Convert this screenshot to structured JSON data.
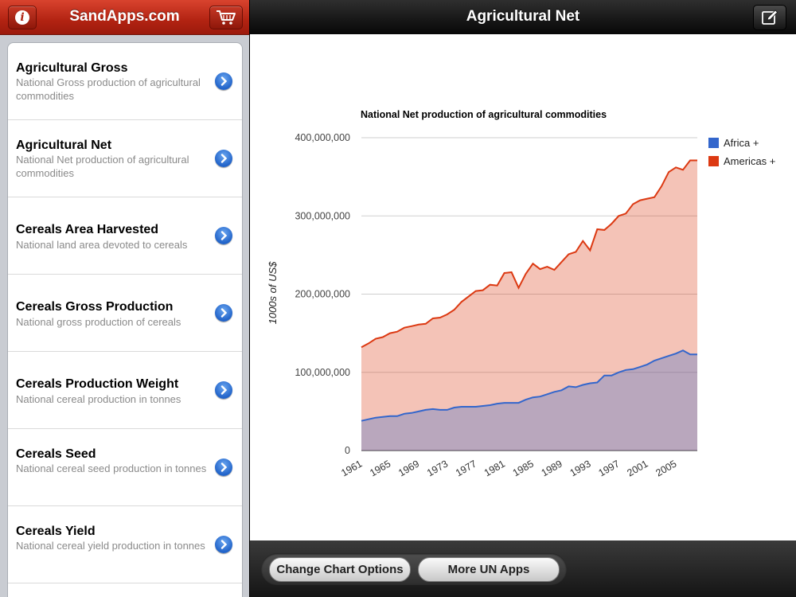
{
  "left_panel": {
    "title": "SandApps.com",
    "info_icon": "info-icon",
    "cart_icon": "cart-icon",
    "items": [
      {
        "title": "Agricultural Gross",
        "subtitle": "National Gross production of agricultural commodities"
      },
      {
        "title": "Agricultural Net",
        "subtitle": "National Net production of agricultural commodities"
      },
      {
        "title": "Cereals Area Harvested",
        "subtitle": "National land area devoted to cereals"
      },
      {
        "title": "Cereals Gross Production",
        "subtitle": "National gross production of cereals"
      },
      {
        "title": "Cereals Production Weight",
        "subtitle": "National cereal production in tonnes"
      },
      {
        "title": "Cereals Seed",
        "subtitle": "National cereal seed production in tonnes"
      },
      {
        "title": "Cereals Yield",
        "subtitle": "National cereal yield production in tonnes"
      }
    ]
  },
  "right_panel": {
    "title": "Agricultural Net",
    "edit_icon": "compose-icon"
  },
  "toolbar": {
    "change_chart_options": "Change Chart Options",
    "more_un_apps": "More UN Apps"
  },
  "colors": {
    "africa": "#3366cc",
    "americas": "#dc3912",
    "header_red": "#b22312"
  },
  "chart_data": {
    "type": "area",
    "title": "National Net production of agricultural commodities",
    "xlabel": "",
    "ylabel": "1000s of US$",
    "ylim": [
      0,
      400000000
    ],
    "yticks": [
      0,
      100000000,
      200000000,
      300000000,
      400000000
    ],
    "ytick_labels": [
      "0",
      "100,000,000",
      "200,000,000",
      "300,000,000",
      "400,000,000"
    ],
    "xtick_labels": [
      "1961",
      "1965",
      "1969",
      "1973",
      "1977",
      "1981",
      "1985",
      "1989",
      "1993",
      "1997",
      "2001",
      "2005"
    ],
    "x": [
      1961,
      1962,
      1963,
      1964,
      1965,
      1966,
      1967,
      1968,
      1969,
      1970,
      1971,
      1972,
      1973,
      1974,
      1975,
      1976,
      1977,
      1978,
      1979,
      1980,
      1981,
      1982,
      1983,
      1984,
      1985,
      1986,
      1987,
      1988,
      1989,
      1990,
      1991,
      1992,
      1993,
      1994,
      1995,
      1996,
      1997,
      1998,
      1999,
      2000,
      2001,
      2002,
      2003,
      2004,
      2005,
      2006,
      2007,
      2008
    ],
    "legend_position": "right",
    "grid": true,
    "series": [
      {
        "name": "Africa +",
        "color": "#3366cc",
        "values": [
          38000000,
          40000000,
          42000000,
          43000000,
          44000000,
          44000000,
          47000000,
          48000000,
          50000000,
          52000000,
          53000000,
          52000000,
          52000000,
          55000000,
          56000000,
          56000000,
          56000000,
          57000000,
          58000000,
          60000000,
          61000000,
          61000000,
          61000000,
          65000000,
          68000000,
          69000000,
          72000000,
          75000000,
          77000000,
          82000000,
          81000000,
          84000000,
          86000000,
          87000000,
          96000000,
          96000000,
          100000000,
          103000000,
          104000000,
          107000000,
          110000000,
          115000000,
          118000000,
          121000000,
          124000000,
          128000000,
          123000000,
          123000000
        ]
      },
      {
        "name": "Americas +",
        "color": "#dc3912",
        "values": [
          132000000,
          137000000,
          143000000,
          145000000,
          150000000,
          152000000,
          157000000,
          159000000,
          161000000,
          162000000,
          169000000,
          170000000,
          174000000,
          180000000,
          190000000,
          197000000,
          204000000,
          205000000,
          212000000,
          211000000,
          227000000,
          228000000,
          208000000,
          226000000,
          239000000,
          232000000,
          235000000,
          231000000,
          241000000,
          251000000,
          254000000,
          268000000,
          256000000,
          283000000,
          282000000,
          290000000,
          300000000,
          303000000,
          315000000,
          320000000,
          322000000,
          324000000,
          338000000,
          356000000,
          362000000,
          359000000,
          371000000,
          371000000
        ]
      }
    ]
  }
}
